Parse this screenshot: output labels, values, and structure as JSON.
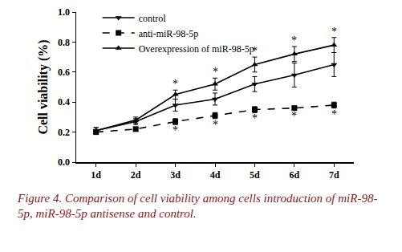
{
  "chart_data": {
    "type": "line",
    "caption": "Figure 4. Comparison of cell viability among cells introduction of miR-98-5p, miR-98-5p antisense and control.",
    "y_label": "Cell viability (%)",
    "categories": [
      "1d",
      "2d",
      "3d",
      "4d",
      "5d",
      "6d",
      "7d"
    ],
    "series": [
      {
        "name": "control",
        "color": "#000000",
        "marker": "triangle-down",
        "line_style": "solid",
        "values": [
          0.21,
          0.27,
          0.38,
          0.42,
          0.52,
          0.58,
          0.65
        ],
        "errors": [
          0.02,
          0.02,
          0.04,
          0.04,
          0.05,
          0.08,
          0.08
        ]
      },
      {
        "name": "anti-miR-98-5p",
        "color": "#000000",
        "marker": "square",
        "line_style": "dash",
        "values": [
          0.2,
          0.22,
          0.27,
          0.31,
          0.35,
          0.36,
          0.38
        ],
        "errors": [
          0.01,
          0.01,
          0.02,
          0.02,
          0.02,
          0.01,
          0.02
        ]
      },
      {
        "name": "Overexpression of miR-98-5p",
        "color": "#000000",
        "marker": "triangle-up",
        "line_style": "solid",
        "values": [
          0.21,
          0.28,
          0.45,
          0.52,
          0.65,
          0.72,
          0.78
        ],
        "errors": [
          0.02,
          0.02,
          0.03,
          0.04,
          0.05,
          0.05,
          0.05
        ]
      }
    ],
    "annotations": [
      {
        "text": "*",
        "series": "Overexpression of miR-98-5p",
        "position": "above",
        "categories": [
          "3d",
          "4d",
          "5d",
          "6d",
          "7d"
        ]
      },
      {
        "text": "*",
        "series": "anti-miR-98-5p",
        "position": "below",
        "categories": [
          "3d",
          "4d",
          "5d",
          "6d",
          "7d"
        ]
      }
    ],
    "ylim": [
      0,
      1.0
    ],
    "yticks": [
      {
        "value": 0,
        "label": "0.0"
      },
      {
        "value": 0.2,
        "label": "0.2"
      },
      {
        "value": 0.4,
        "label": "0.4"
      },
      {
        "value": 0.6,
        "label": "0.6"
      },
      {
        "value": 0.8,
        "label": "0.8"
      },
      {
        "value": 1.0,
        "label": "1.0"
      }
    ],
    "legend": "top-left",
    "grid": false
  }
}
